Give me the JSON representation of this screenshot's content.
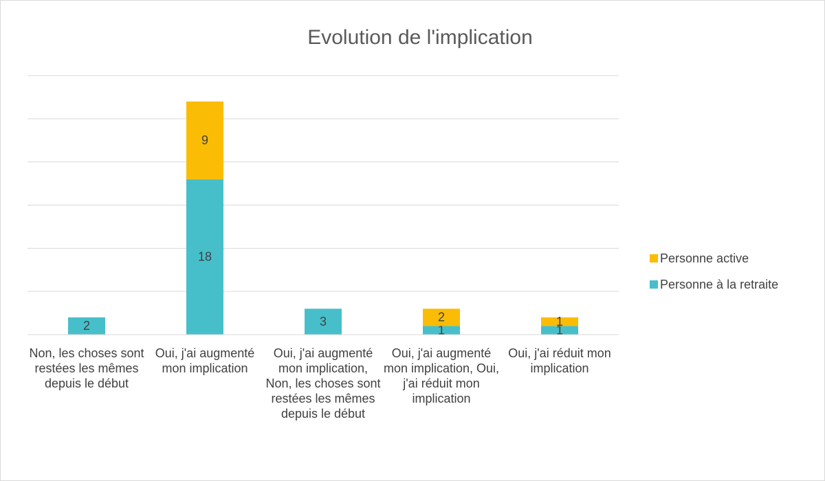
{
  "chart_data": {
    "type": "stacked_bar",
    "title": "Evolution de l'implication",
    "categories": [
      "Non, les choses sont restées les mêmes depuis le début",
      "Oui, j'ai augmenté mon implication",
      "Oui, j'ai augmenté mon implication, Non, les choses sont restées les mêmes depuis le début",
      "Oui, j'ai augmenté mon implication, Oui, j'ai réduit mon implication",
      "Oui, j'ai réduit mon implication"
    ],
    "series": [
      {
        "name": "Personne à la retraite",
        "color": "#47bfca",
        "values": [
          2,
          18,
          3,
          1,
          1
        ]
      },
      {
        "name": "Personne active",
        "color": "#fbbc05",
        "values": [
          null,
          9,
          null,
          2,
          1
        ]
      }
    ],
    "ylim": [
      0,
      30
    ],
    "yticks": [
      0,
      5,
      10,
      15,
      20,
      25,
      30
    ],
    "grid": true,
    "legend": "right"
  }
}
